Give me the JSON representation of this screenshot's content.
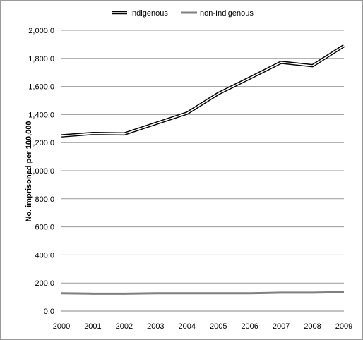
{
  "chart_data": {
    "type": "line",
    "title": "",
    "xlabel": "",
    "ylabel": "No. imprisoned per 100,000",
    "categories": [
      "2000",
      "2001",
      "2002",
      "2003",
      "2004",
      "2005",
      "2006",
      "2007",
      "2008",
      "2009"
    ],
    "ylim": [
      0,
      2000
    ],
    "yticks": [
      "0.0",
      "200.0",
      "400.0",
      "600.0",
      "800.0",
      "1,000.0",
      "1,200.0",
      "1,400.0",
      "1,600.0",
      "1,800.0",
      "2,000.0"
    ],
    "grid": "horizontal",
    "legend_position": "top",
    "series": [
      {
        "name": "Indigenous",
        "values": [
          1248,
          1265,
          1262,
          1336,
          1410,
          1550,
          1660,
          1772,
          1748,
          1890
        ],
        "color": "#000000",
        "style": "double"
      },
      {
        "name": "non-Indigenous",
        "values": [
          127,
          124,
          124,
          127,
          127,
          127,
          127,
          131,
          131,
          135
        ],
        "color": "#808080",
        "style": "solid"
      }
    ]
  }
}
